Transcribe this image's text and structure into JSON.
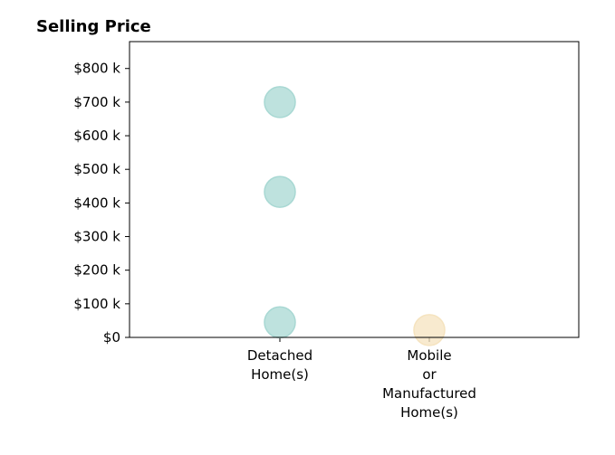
{
  "chart_data": {
    "type": "scatter",
    "title": "Selling Price",
    "xlabel": "",
    "ylabel": "",
    "categories": [
      [
        "Detached",
        "Home(s)"
      ],
      [
        "Mobile",
        "or",
        "Manufactured",
        "Home(s)"
      ]
    ],
    "y_ticks": [
      0,
      100000,
      200000,
      300000,
      400000,
      500000,
      600000,
      700000,
      800000
    ],
    "y_tick_labels": [
      "$0",
      "$100 k",
      "$200 k",
      "$300 k",
      "$400 k",
      "$500 k",
      "$600 k",
      "$700 k",
      "$800 k"
    ],
    "ylim": [
      0,
      880000
    ],
    "grid": false,
    "legend": "none",
    "points": [
      {
        "category": 0,
        "y": 700000,
        "color": "#a8d8d3"
      },
      {
        "category": 0,
        "y": 433000,
        "color": "#a8d8d3"
      },
      {
        "category": 0,
        "y": 45000,
        "color": "#a8d8d3"
      },
      {
        "category": 1,
        "y": 22000,
        "color": "#f5e3bf"
      }
    ]
  }
}
